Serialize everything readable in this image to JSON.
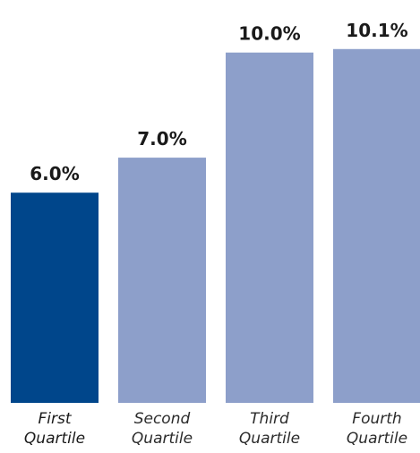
{
  "chart_data": {
    "type": "bar",
    "categories": [
      [
        "First",
        "Quartile"
      ],
      [
        "Second",
        "Quartile"
      ],
      [
        "Third",
        "Quartile"
      ],
      [
        "Fourth",
        "Quartile"
      ]
    ],
    "values": [
      6.0,
      7.0,
      10.0,
      10.1
    ],
    "value_labels": [
      "6.0%",
      "7.0%",
      "10.0%",
      "10.1%"
    ],
    "colors": [
      "#00468b",
      "#8d9fca",
      "#8d9fca",
      "#8d9fca"
    ],
    "ylim": [
      0,
      11.5
    ],
    "grid": false,
    "title": "",
    "xlabel": "",
    "ylabel": ""
  }
}
